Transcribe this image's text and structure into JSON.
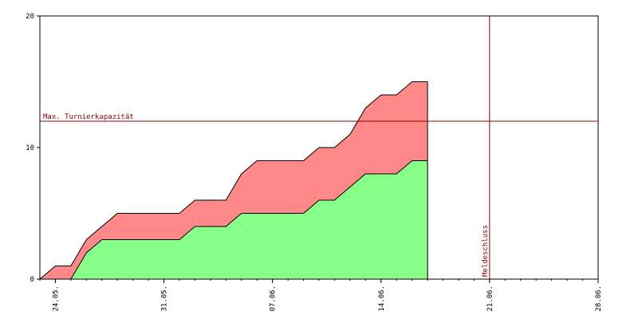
{
  "chart_data": {
    "type": "area",
    "title": "",
    "xlabel": "",
    "ylabel": "",
    "ylim": [
      0,
      20
    ],
    "xlim_days": [
      0,
      36
    ],
    "y_ticks": [
      0,
      10,
      20
    ],
    "x_ticks": [
      {
        "day": 1,
        "label": "24.05."
      },
      {
        "day": 8,
        "label": "31.05."
      },
      {
        "day": 15,
        "label": "07.06."
      },
      {
        "day": 22,
        "label": "14.06."
      },
      {
        "day": 29,
        "label": "21.06."
      },
      {
        "day": 36,
        "label": "28.06."
      }
    ],
    "series": [
      {
        "color": "#ff8888",
        "step_days": [
          0,
          1,
          2,
          3,
          4,
          5,
          6,
          7,
          8,
          9,
          10,
          11,
          12,
          13,
          14,
          15,
          16,
          17,
          18,
          19,
          20,
          21,
          22,
          23,
          24,
          25
        ],
        "values": [
          0,
          1,
          1,
          3,
          4,
          5,
          5,
          5,
          5,
          5,
          6,
          6,
          6,
          8,
          9,
          9,
          9,
          9,
          10,
          10,
          11,
          13,
          14,
          14,
          15,
          15
        ]
      },
      {
        "color": "#88ff88",
        "step_days": [
          0,
          1,
          2,
          3,
          4,
          5,
          6,
          7,
          8,
          9,
          10,
          11,
          12,
          13,
          14,
          15,
          16,
          17,
          18,
          19,
          20,
          21,
          22,
          23,
          24,
          25
        ],
        "values": [
          0,
          0,
          0,
          2,
          3,
          3,
          3,
          3,
          3,
          3,
          4,
          4,
          4,
          5,
          5,
          5,
          5,
          5,
          6,
          6,
          7,
          8,
          8,
          8,
          9,
          9
        ]
      }
    ],
    "annotations": {
      "capacity": {
        "value": 12,
        "label": "Max. Turnierkapazität",
        "color": "#880000"
      },
      "deadline": {
        "day": 29,
        "label": "Meldeschluss",
        "color": "#880000"
      }
    },
    "grid": false
  }
}
